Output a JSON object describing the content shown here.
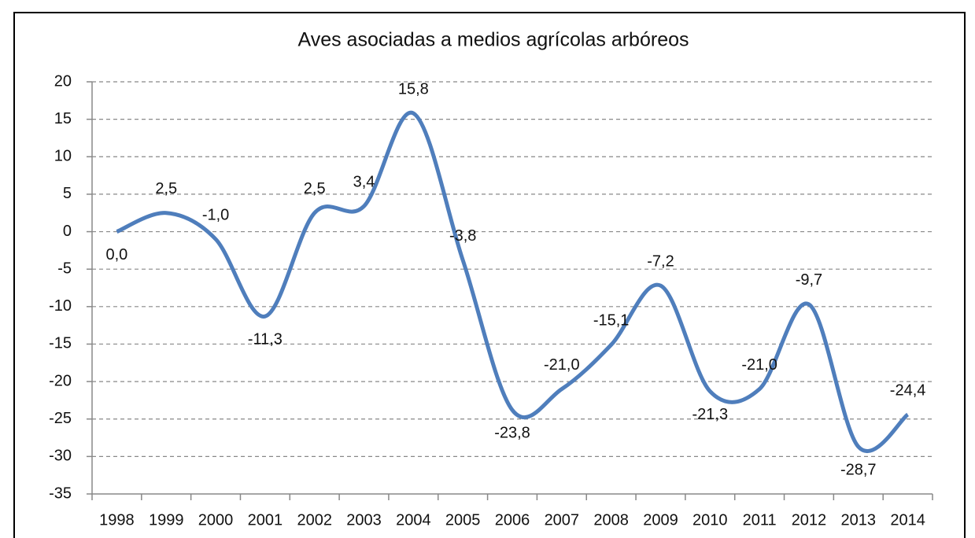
{
  "chart_data": {
    "type": "line",
    "title": "Aves asociadas a medios agrícolas arbóreos",
    "categories": [
      "1998",
      "1999",
      "2000",
      "2001",
      "2002",
      "2003",
      "2004",
      "2005",
      "2006",
      "2007",
      "2008",
      "2009",
      "2010",
      "2011",
      "2012",
      "2013",
      "2014"
    ],
    "values": [
      0.0,
      2.5,
      -1.0,
      -11.3,
      2.5,
      3.4,
      15.8,
      -3.8,
      -23.8,
      -21.0,
      -15.1,
      -7.2,
      -21.3,
      -21.0,
      -9.7,
      -28.7,
      -24.4
    ],
    "value_labels": [
      "0,0",
      "2,5",
      "-1,0",
      "-11,3",
      "2,5",
      "3,4",
      "15,8",
      "-3,8",
      "-23,8",
      "-21,0",
      "-15,1",
      "-7,2",
      "-21,3",
      "-21,0",
      "-9,7",
      "-28,7",
      "-24,4"
    ],
    "color": "#4f7ebc",
    "ylim": [
      -35,
      20
    ],
    "yticks": [
      -35,
      -30,
      -25,
      -20,
      -15,
      -10,
      -5,
      0,
      5,
      10,
      15,
      20
    ],
    "grid": true
  }
}
